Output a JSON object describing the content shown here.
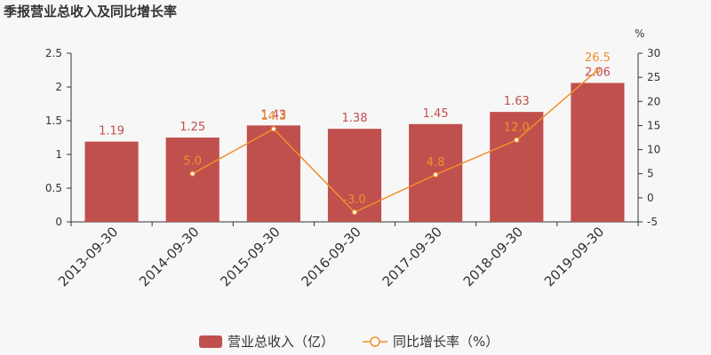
{
  "title": "季报营业总收入及同比增长率",
  "chart_data": {
    "type": "bar",
    "title": "季报营业总收入及同比增长率",
    "categories": [
      "2013-09-30",
      "2014-09-30",
      "2015-09-30",
      "2016-09-30",
      "2017-09-30",
      "2018-09-30",
      "2019-09-30"
    ],
    "series": [
      {
        "name": "营业总收入（亿）",
        "type": "bar",
        "axis": "left",
        "color": "#c0504d",
        "values": [
          1.19,
          1.25,
          1.43,
          1.38,
          1.45,
          1.63,
          2.06
        ],
        "labels": [
          "1.19",
          "1.25",
          "1.43",
          "1.38",
          "1.45",
          "1.63",
          "2.06"
        ]
      },
      {
        "name": "同比增长率（%）",
        "type": "line",
        "axis": "right",
        "color": "#f28e2b",
        "values": [
          null,
          5.0,
          14.3,
          -3.0,
          4.8,
          12.0,
          26.5
        ],
        "labels": [
          "",
          "5.0",
          "14.3",
          "-3.0",
          "4.8",
          "12.0",
          "26.5"
        ]
      }
    ],
    "y_left": {
      "range": [
        0,
        2.5
      ],
      "ticks": [
        "0",
        "0.5",
        "1",
        "1.5",
        "2",
        "2.5"
      ],
      "tick_values": [
        0,
        0.5,
        1,
        1.5,
        2,
        2.5
      ]
    },
    "y_right": {
      "range": [
        -5,
        30
      ],
      "unit": "%",
      "ticks": [
        "-5",
        "0",
        "5",
        "10",
        "15",
        "20",
        "25",
        "30"
      ],
      "tick_values": [
        -5,
        0,
        5,
        10,
        15,
        20,
        25,
        30
      ]
    },
    "grid": false,
    "legend_position": "bottom-center"
  },
  "legend": {
    "bar_label": "营业总收入（亿）",
    "line_label": "同比增长率（%）"
  }
}
